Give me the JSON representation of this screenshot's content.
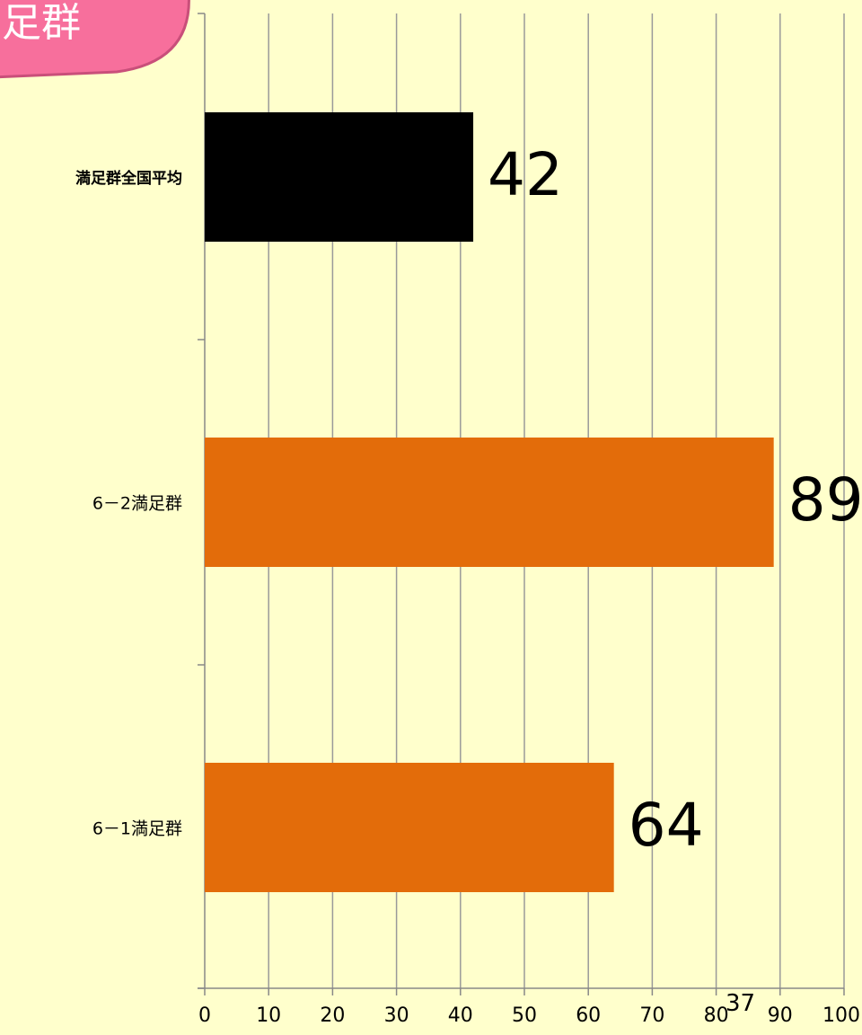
{
  "badge": {
    "text": "足群",
    "fill": "#f76f9c",
    "stroke": "#c94f7a",
    "text_color": "#ffffff"
  },
  "page_number": "37",
  "chart_data": {
    "type": "bar",
    "orientation": "horizontal",
    "categories": [
      "満足群全国平均",
      "6－2満足群",
      "6－1満足群"
    ],
    "values": [
      42,
      89,
      64
    ],
    "bar_colors": [
      "#000000",
      "#e36c0a",
      "#e36c0a"
    ],
    "data_labels": [
      "42",
      "89",
      "64"
    ],
    "xlim": [
      0,
      100
    ],
    "xticks": [
      0,
      10,
      20,
      30,
      40,
      50,
      60,
      70,
      80,
      90,
      100
    ],
    "xtick_labels": [
      "0",
      "10",
      "20",
      "30",
      "40",
      "50",
      "60",
      "70",
      "80",
      "90",
      "100"
    ],
    "grid": true,
    "legend": "none",
    "title": "",
    "xlabel": "",
    "ylabel": ""
  },
  "colors": {
    "background": "#ffffcc",
    "gridline": "#9a9a9a",
    "axis": "#888888"
  }
}
